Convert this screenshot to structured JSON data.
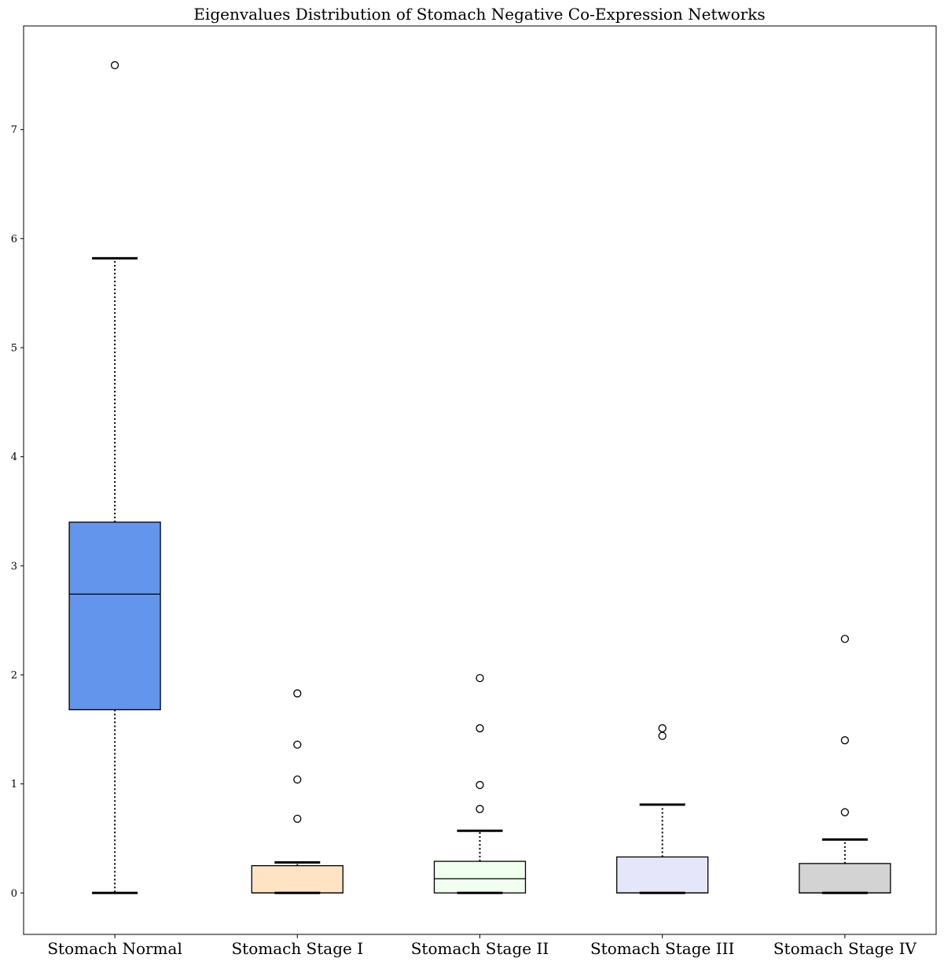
{
  "chart_data": {
    "type": "box",
    "title": "Eigenvalues Distribution of Stomach Negative Co-Expression Networks",
    "xlabel": "",
    "ylabel": "",
    "categories": [
      "Stomach Normal",
      "Stomach Stage I",
      "Stomach Stage II",
      "Stomach Stage III",
      "Stomach Stage IV"
    ],
    "ylim": [
      -0.38,
      7.95
    ],
    "yticks": [
      "0",
      "1",
      "2",
      "3",
      "4",
      "5",
      "6",
      "7"
    ],
    "grid": false,
    "boxes": [
      {
        "category": "Stomach Normal",
        "whisker_low": 0.0,
        "q1": 1.68,
        "median": 2.74,
        "q3": 3.4,
        "whisker_high": 5.82,
        "outliers": [
          7.59
        ],
        "color": "#6495ED"
      },
      {
        "category": "Stomach Stage I",
        "whisker_low": 0.0,
        "q1": 0.0,
        "median": 0.0,
        "q3": 0.25,
        "whisker_high": 0.28,
        "outliers": [
          0.68,
          1.04,
          1.36,
          1.83
        ],
        "color": "#FFE4C4"
      },
      {
        "category": "Stomach Stage II",
        "whisker_low": 0.0,
        "q1": 0.0,
        "median": 0.13,
        "q3": 0.29,
        "whisker_high": 0.57,
        "outliers": [
          0.77,
          0.99,
          1.51,
          1.97
        ],
        "color": "#F0FFF0"
      },
      {
        "category": "Stomach Stage III",
        "whisker_low": 0.0,
        "q1": 0.0,
        "median": 0.0,
        "q3": 0.33,
        "whisker_high": 0.81,
        "outliers": [
          1.44,
          1.51
        ],
        "color": "#E6E6FA"
      },
      {
        "category": "Stomach Stage IV",
        "whisker_low": 0.0,
        "q1": 0.0,
        "median": 0.0,
        "q3": 0.27,
        "whisker_high": 0.49,
        "outliers": [
          0.74,
          1.4,
          2.33
        ],
        "color": "#D3D3D3"
      }
    ]
  }
}
